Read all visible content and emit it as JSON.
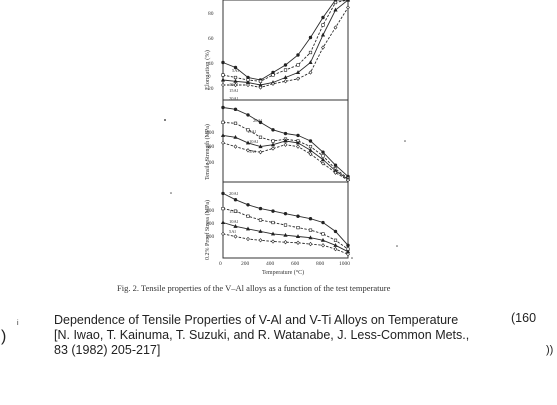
{
  "figure": {
    "caption": "Fig. 2. Tensile properties of the V–Al alloys as a function of the test temperature",
    "x_axis": {
      "label": "Temperature (°C)",
      "ticks": [
        "0",
        "200",
        "400",
        "600",
        "800",
        "1000"
      ]
    },
    "panels": [
      {
        "ylabel": "Elongation (%)",
        "yticks": [
          "20",
          "40",
          "60",
          "80"
        ],
        "curve_labels": [
          "5Al",
          "10Al",
          "15Al",
          "20Al"
        ]
      },
      {
        "ylabel": "Tensile Strength (MPa)",
        "yticks": [
          "200",
          "300",
          "400"
        ],
        "curve_labels": [
          "20Al",
          "15Al",
          "10Al",
          "5Al"
        ]
      },
      {
        "ylabel": "0.2% Proof Stress (MPa)",
        "yticks": [
          "200",
          "300",
          "400"
        ],
        "curve_labels": [
          "20Al",
          "15Al",
          "10Al",
          "5Al"
        ]
      }
    ]
  },
  "chart_data": [
    {
      "type": "line",
      "x": [
        0,
        100,
        200,
        300,
        400,
        500,
        600,
        700,
        800,
        900,
        1000
      ],
      "series": [
        {
          "name": "5Al",
          "values": [
            40,
            36,
            28,
            26,
            32,
            38,
            46,
            60,
            76,
            90,
            100
          ]
        },
        {
          "name": "10Al",
          "values": [
            30,
            28,
            26,
            25,
            30,
            34,
            38,
            48,
            70,
            88,
            100
          ]
        },
        {
          "name": "15Al",
          "values": [
            26,
            25,
            24,
            22,
            24,
            28,
            32,
            40,
            62,
            82,
            96
          ]
        },
        {
          "name": "20Al",
          "values": [
            22,
            22,
            22,
            20,
            23,
            25,
            27,
            32,
            52,
            68,
            84
          ]
        }
      ],
      "ylabel": "Elongation (%)",
      "xlabel": "Temperature (°C)",
      "ylim": [
        10,
        90
      ],
      "xlim": [
        0,
        1000
      ],
      "grid": false
    },
    {
      "type": "line",
      "x": [
        0,
        100,
        200,
        300,
        400,
        500,
        600,
        700,
        800,
        900,
        1000
      ],
      "series": [
        {
          "name": "20Al",
          "values": [
            480,
            470,
            440,
            400,
            360,
            340,
            330,
            300,
            240,
            170,
            110
          ]
        },
        {
          "name": "15Al",
          "values": [
            400,
            395,
            360,
            320,
            300,
            310,
            300,
            270,
            220,
            150,
            100
          ]
        },
        {
          "name": "10Al",
          "values": [
            330,
            320,
            290,
            270,
            280,
            300,
            290,
            250,
            200,
            140,
            95
          ]
        },
        {
          "name": "5Al",
          "values": [
            290,
            270,
            250,
            240,
            260,
            280,
            270,
            230,
            180,
            130,
            90
          ]
        }
      ],
      "ylabel": "Tensile Strength (MPa)",
      "xlabel": "Temperature (°C)",
      "ylim": [
        80,
        520
      ],
      "xlim": [
        0,
        1000
      ],
      "grid": false
    },
    {
      "type": "line",
      "x": [
        0,
        100,
        200,
        300,
        400,
        500,
        600,
        700,
        800,
        900,
        1000
      ],
      "series": [
        {
          "name": "20Al",
          "values": [
            560,
            510,
            470,
            440,
            420,
            400,
            380,
            360,
            330,
            260,
            150
          ]
        },
        {
          "name": "15Al",
          "values": [
            440,
            420,
            380,
            350,
            330,
            310,
            290,
            270,
            240,
            190,
            120
          ]
        },
        {
          "name": "10Al",
          "values": [
            330,
            300,
            280,
            260,
            240,
            230,
            220,
            210,
            190,
            150,
            100
          ]
        },
        {
          "name": "5Al",
          "values": [
            240,
            220,
            200,
            190,
            180,
            175,
            170,
            160,
            150,
            120,
            80
          ]
        }
      ],
      "ylabel": "0.2% Proof Stress (MPa)",
      "xlabel": "Temperature (°C)",
      "ylim": [
        50,
        650
      ],
      "xlim": [
        0,
        1000
      ],
      "grid": false
    }
  ],
  "citation": {
    "title_line": "Dependence of Tensile Properties of V-Al and V-Ti Alloys on Temperature",
    "ref_line1": "[N. Iwao, T. Kainuma, T. Suzuki, and R. Watanabe, J. Less-Common Mets.,",
    "ref_line2": "83 (1982) 205-217]",
    "page_number_fragment": "(160"
  },
  "edge_fragments": {
    "left": ")",
    "left_mark": "i",
    "right": "))"
  }
}
